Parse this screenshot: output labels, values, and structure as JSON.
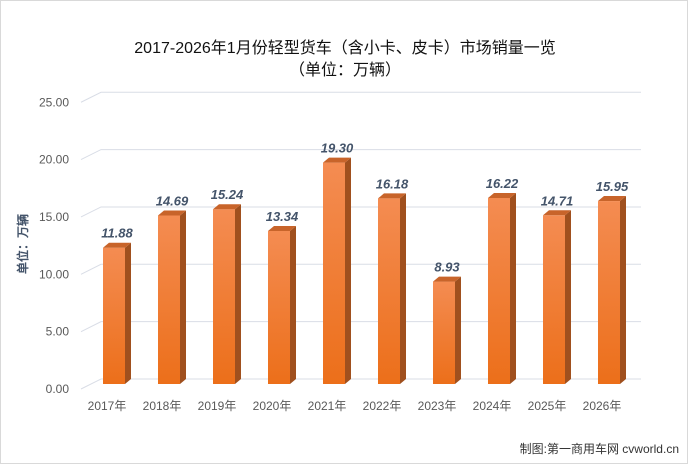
{
  "chart_data": {
    "type": "bar",
    "title": "2017-2026年1月份轻型货车（含小卡、皮卡）市场销量一览",
    "subtitle": "（单位：万辆）",
    "ylabel": "单位：万辆",
    "xlabel": "",
    "categories": [
      "2017年",
      "2018年",
      "2019年",
      "2020年",
      "2021年",
      "2022年",
      "2023年",
      "2024年",
      "2025年",
      "2026年"
    ],
    "values": [
      11.88,
      14.69,
      15.24,
      13.34,
      19.3,
      16.18,
      8.93,
      16.22,
      14.71,
      15.95
    ],
    "data_labels": [
      "11.88",
      "14.69",
      "15.24",
      "13.34",
      "19.30",
      "16.18",
      "8.93",
      "16.22",
      "14.71",
      "15.95"
    ],
    "ylim": [
      0,
      25
    ],
    "yticks": [
      "0.00",
      "5.00",
      "10.00",
      "15.00",
      "20.00",
      "25.00"
    ],
    "grid": true,
    "style": "3d-column",
    "bar_color": "#f07f2a"
  },
  "footer": "制图:第一商用车网 cvworld.cn"
}
